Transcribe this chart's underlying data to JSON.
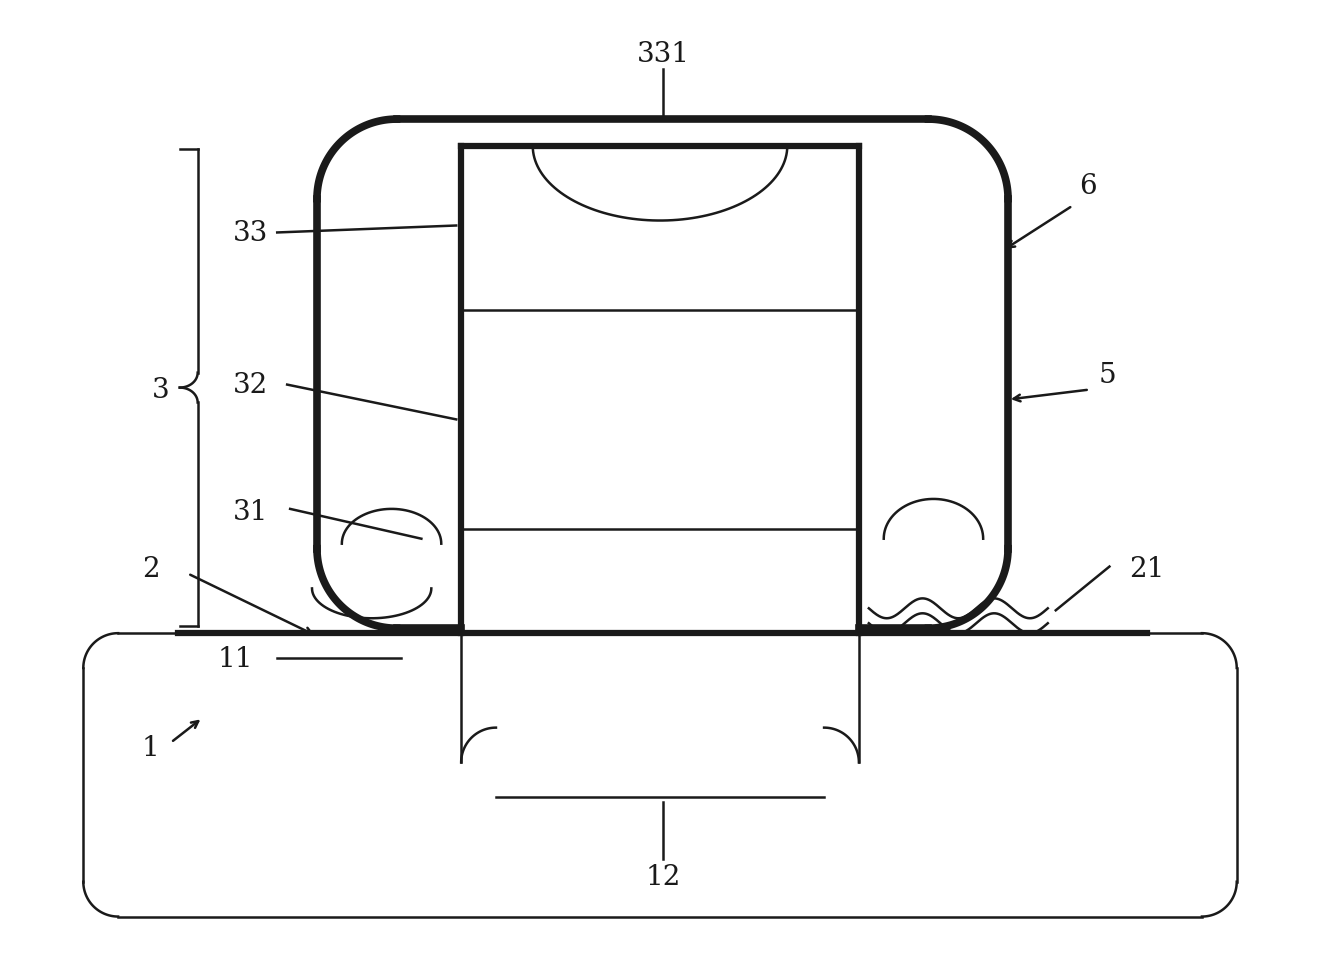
{
  "bg_color": "#ffffff",
  "line_color": "#1a1a1a",
  "lw_thin": 1.8,
  "lw_medium": 2.5,
  "lw_thick": 4.5,
  "lw_outer": 5.5,
  "fig_width": 13.27,
  "fig_height": 9.78,
  "font_size": 20,
  "font_size_small": 18
}
